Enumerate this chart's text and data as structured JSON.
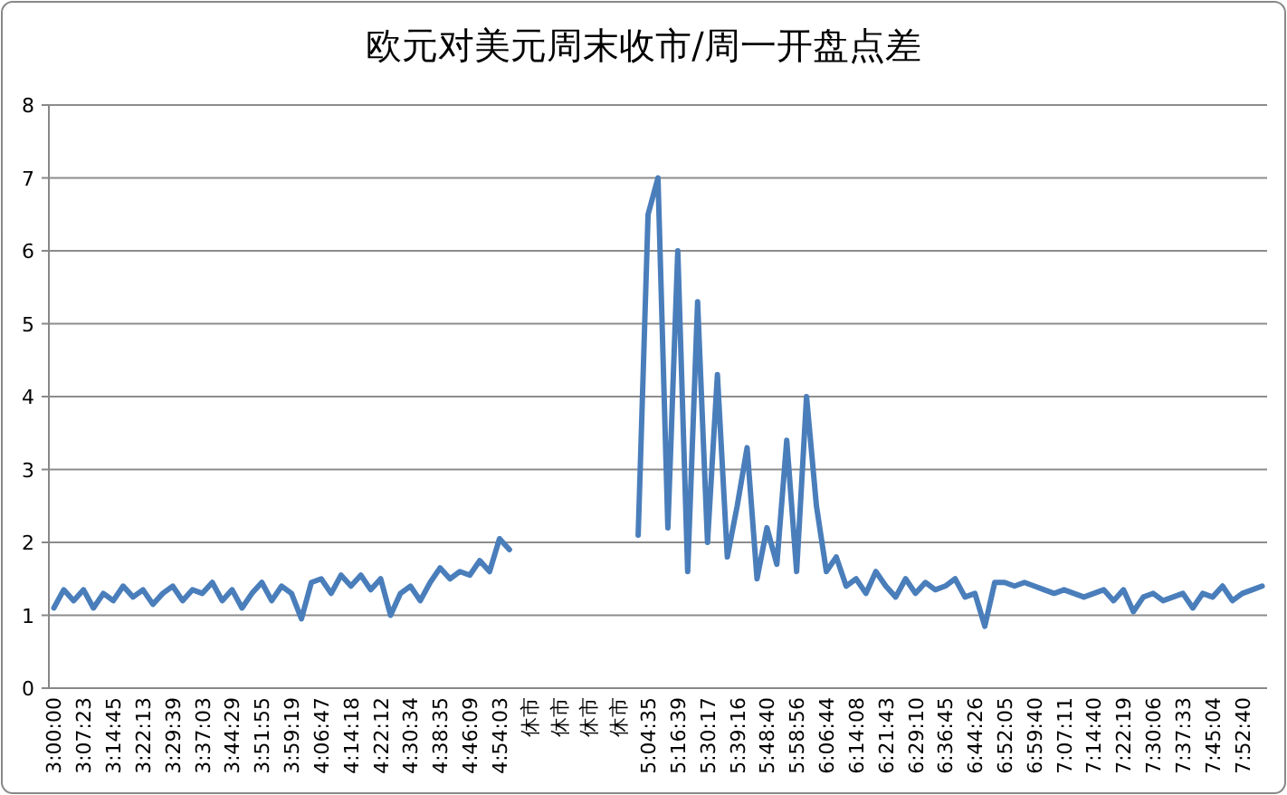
{
  "chart_data": {
    "type": "line",
    "title": "欧元对美元周末收市/周一开盘点差",
    "categories": [
      "3:00:00",
      null,
      null,
      "3:07:23",
      null,
      null,
      "3:14:45",
      null,
      null,
      "3:22:13",
      null,
      null,
      "3:29:39",
      null,
      null,
      "3:37:03",
      null,
      null,
      "3:44:29",
      null,
      null,
      "3:51:55",
      null,
      null,
      "3:59:19",
      null,
      null,
      "4:06:47",
      null,
      null,
      "4:14:18",
      null,
      null,
      "4:22:12",
      null,
      null,
      "4:30:34",
      null,
      null,
      "4:38:35",
      null,
      null,
      "4:46:09",
      null,
      null,
      "4:54:03",
      null,
      null,
      "休市",
      null,
      null,
      "休市",
      null,
      null,
      "休市",
      null,
      null,
      "休市",
      null,
      null,
      "5:04:35",
      null,
      null,
      "5:16:39",
      null,
      null,
      "5:30:17",
      null,
      null,
      "5:39:16",
      null,
      null,
      "5:48:40",
      null,
      null,
      "5:58:56",
      null,
      null,
      "6:06:44",
      null,
      null,
      "6:14:08",
      null,
      null,
      "6:21:43",
      null,
      null,
      "6:29:10",
      null,
      null,
      "6:36:45",
      null,
      null,
      "6:44:26",
      null,
      null,
      "6:52:05",
      null,
      null,
      "6:59:40",
      null,
      null,
      "7:07:11",
      null,
      null,
      "7:14:40",
      null,
      null,
      "7:22:19",
      null,
      null,
      "7:30:06",
      null,
      null,
      "7:37:33",
      null,
      null,
      "7:45:04",
      null,
      null,
      "7:52:40",
      null,
      null
    ],
    "series": [
      {
        "color": "#4a7ebb",
        "values": [
          1.1,
          1.35,
          1.2,
          1.35,
          1.1,
          1.3,
          1.2,
          1.4,
          1.25,
          1.35,
          1.15,
          1.3,
          1.4,
          1.2,
          1.35,
          1.3,
          1.45,
          1.2,
          1.35,
          1.1,
          1.3,
          1.45,
          1.2,
          1.4,
          1.3,
          0.95,
          1.45,
          1.5,
          1.3,
          1.55,
          1.4,
          1.55,
          1.35,
          1.5,
          1.0,
          1.3,
          1.4,
          1.2,
          1.45,
          1.65,
          1.5,
          1.6,
          1.55,
          1.75,
          1.6,
          2.05,
          1.9,
          null,
          null,
          null,
          null,
          null,
          null,
          null,
          null,
          null,
          null,
          null,
          null,
          2.1,
          6.5,
          7.0,
          2.2,
          6.0,
          1.6,
          5.3,
          2.0,
          4.3,
          1.8,
          2.5,
          3.3,
          1.5,
          2.2,
          1.7,
          3.4,
          1.6,
          4.0,
          2.5,
          1.6,
          1.8,
          1.4,
          1.5,
          1.3,
          1.6,
          1.4,
          1.25,
          1.5,
          1.3,
          1.45,
          1.35,
          1.4,
          1.5,
          1.25,
          1.3,
          0.85,
          1.45,
          1.45,
          1.4,
          1.45,
          1.4,
          1.35,
          1.3,
          1.35,
          1.3,
          1.25,
          1.3,
          1.35,
          1.2,
          1.35,
          1.05,
          1.25,
          1.3,
          1.2,
          1.25,
          1.3,
          1.1,
          1.3,
          1.25,
          1.4,
          1.2,
          1.3,
          1.35,
          1.4
        ]
      }
    ],
    "ylim": [
      0,
      8
    ],
    "yticks": [
      0,
      1,
      2,
      3,
      4,
      5,
      6,
      7,
      8
    ],
    "grid": "y"
  }
}
